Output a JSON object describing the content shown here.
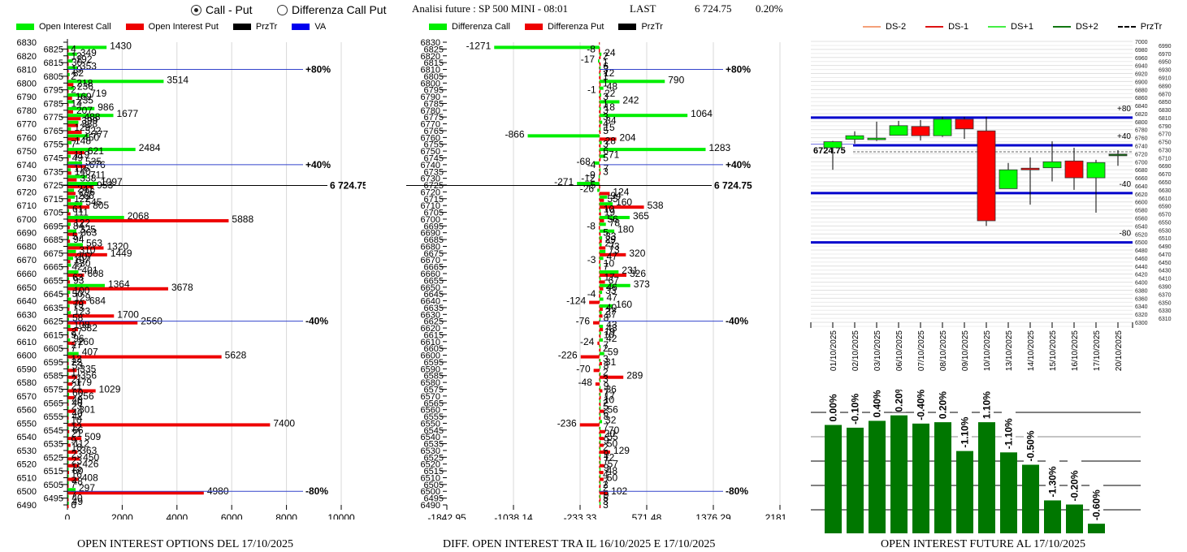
{
  "controls": {
    "radio_options": [
      {
        "label": "Call - Put",
        "selected": true
      },
      {
        "label": "Differenza Call Put",
        "selected": false
      }
    ]
  },
  "header": {
    "title": "Analisi future : SP 500 MINI - 08:01",
    "last_label": "LAST",
    "last_value": "6 724.75",
    "change": "0.20%"
  },
  "colors": {
    "call": "#00ee00",
    "put": "#ee0000",
    "prztr": "#000000",
    "va": "#0000ff",
    "candle_up": "#00ff00",
    "candle_down": "#ff0000",
    "ds_minus2": "#f4a07a",
    "ds_minus1": "#dd1111",
    "ds_plus1": "#44ee44",
    "ds_plus2": "#117711",
    "oi_bar": "#007700"
  },
  "chart_data": [
    {
      "id": "oi_options",
      "type": "bar",
      "orientation": "horizontal",
      "title": "OPEN INTEREST OPTIONS DEL 17/10/2025",
      "legend": [
        "Open Interest Call",
        "Open Interest Put",
        "PrzTr",
        "VA"
      ],
      "xlim": [
        0,
        10000
      ],
      "x_ticks": [
        "0",
        "2000",
        "4000",
        "6000",
        "8000",
        "10000"
      ],
      "ylim": [
        6490,
        6830
      ],
      "strikes": [
        6825,
        6820,
        6815,
        6810,
        6805,
        6800,
        6795,
        6790,
        6785,
        6780,
        6775,
        6770,
        6765,
        6760,
        6755,
        6750,
        6745,
        6740,
        6735,
        6730,
        6725,
        6720,
        6715,
        6710,
        6705,
        6700,
        6695,
        6690,
        6685,
        6680,
        6675,
        6670,
        6665,
        6660,
        6655,
        6650,
        6645,
        6640,
        6635,
        6630,
        6625,
        6620,
        6615,
        6610,
        6605,
        6600,
        6595,
        6590,
        6585,
        6580,
        6575,
        6570,
        6565,
        6560,
        6555,
        6550,
        6545,
        6540,
        6535,
        6530,
        6525,
        6520,
        6515,
        6510,
        6505,
        6500,
        6495,
        6490
      ],
      "series": [
        {
          "name": "Open Interest Call",
          "values": [
            1430,
            349,
            192,
            353,
            82,
            3514,
            236,
            719,
            235,
            986,
            1677,
            399,
            129,
            777,
            148,
            2484,
            119,
            535,
            116,
            711,
            1097,
            241,
            266,
            545,
            61,
            2068,
            122,
            325,
            57,
            563,
            310,
            207,
            130,
            401,
            63,
            1364,
            100,
            129,
            79,
            123,
            58,
            108,
            27,
            96,
            27,
            407,
            12,
            53,
            11,
            21,
            21,
            60,
            40,
            23,
            40,
            10,
            12,
            21,
            9,
            18,
            23,
            23,
            15,
            16,
            48,
            297,
            7,
            49
          ]
        },
        {
          "name": "Open Interest Put",
          "values": [
            4,
            13,
            30,
            19,
            2,
            218,
            2,
            169,
            14,
            207,
            488,
            388,
            522,
            450,
            7,
            621,
            49,
            676,
            140,
            338,
            953,
            296,
            122,
            805,
            111,
            5888,
            84,
            363,
            94,
            1320,
            1449,
            107,
            42,
            608,
            93,
            3678,
            50,
            684,
            73,
            1700,
            2560,
            382,
            9,
            260,
            7,
            5628,
            22,
            335,
            356,
            179,
            1029,
            256,
            40,
            301,
            42,
            7400,
            66,
            509,
            112,
            363,
            450,
            426,
            60,
            408,
            7,
            4980,
            40,
            6
          ]
        }
      ],
      "reference_lines": [
        {
          "label": "+80%",
          "strike": 6810,
          "color": "va"
        },
        {
          "label": "+40%",
          "strike": 6740,
          "color": "va"
        },
        {
          "label": "6 724.75",
          "strike": 6724.75,
          "color": "prztr"
        },
        {
          "label": "-40%",
          "strike": 6625,
          "color": "va"
        },
        {
          "label": "-80%",
          "strike": 6500,
          "color": "va"
        }
      ]
    },
    {
      "id": "diff_oi",
      "type": "bar",
      "orientation": "horizontal",
      "title": "DIFF. OPEN INTEREST TRA IL 16/10/2025 E 17/10/2025",
      "legend": [
        "Differenza Call",
        "Differenza Put",
        "PrzTr"
      ],
      "xlim": [
        -1842.95,
        2181.1
      ],
      "x_ticks": [
        "-1842.95",
        "-1038.14",
        "-233.33",
        "571.48",
        "1376.29",
        "2181.1"
      ],
      "ylim": [
        6490,
        6830
      ],
      "strikes": [
        6825,
        6820,
        6815,
        6810,
        6805,
        6800,
        6795,
        6790,
        6785,
        6780,
        6775,
        6770,
        6765,
        6760,
        6755,
        6750,
        6745,
        6740,
        6735,
        6730,
        6725,
        6720,
        6715,
        6710,
        6705,
        6700,
        6695,
        6690,
        6685,
        6680,
        6675,
        6670,
        6665,
        6660,
        6655,
        6650,
        6645,
        6640,
        6635,
        6630,
        6625,
        6620,
        6615,
        6610,
        6605,
        6600,
        6595,
        6590,
        6585,
        6580,
        6575,
        6570,
        6565,
        6560,
        6555,
        6550,
        6545,
        6540,
        6535,
        6530,
        6525,
        6520,
        6515,
        6510,
        6505,
        6500,
        6495,
        6490
      ],
      "series": [
        {
          "name": "Differenza Call",
          "values": [
            -1271,
            24,
            -17,
            6,
            12,
            790,
            48,
            22,
            242,
            18,
            1064,
            34,
            15,
            -866,
            28,
            1283,
            71,
            -68,
            7,
            -9,
            -271,
            -26,
            94,
            160,
            10,
            365,
            78,
            180,
            33,
            27,
            73,
            47,
            10,
            231,
            17,
            373,
            33,
            47,
            160,
            27,
            8,
            43,
            19,
            42,
            7,
            59,
            3,
            8,
            2,
            3,
            9,
            7,
            10,
            5,
            6,
            32,
            7,
            20,
            9,
            2,
            9,
            7,
            9,
            4,
            7,
            2,
            9,
            3
          ]
        },
        {
          "name": "Differenza Put",
          "values": [
            -8,
            2,
            1,
            3,
            1,
            1,
            -1,
            3,
            1,
            3,
            3,
            4,
            5,
            204,
            3,
            6,
            5,
            -4,
            3,
            -12,
            -5,
            124,
            55,
            538,
            19,
            56,
            -8,
            5,
            29,
            73,
            320,
            -3,
            7,
            326,
            67,
            46,
            -4,
            -124,
            40,
            37,
            -76,
            43,
            10,
            -24,
            2,
            -226,
            31,
            -70,
            289,
            -48,
            36,
            17,
            2,
            56,
            8,
            -236,
            70,
            55,
            50,
            129,
            12,
            57,
            48,
            50,
            2,
            102,
            5,
            3
          ]
        }
      ],
      "reference_lines": [
        {
          "label": "+80%",
          "strike": 6810,
          "color": "va"
        },
        {
          "label": "+40%",
          "strike": 6740,
          "color": "va"
        },
        {
          "label": "6 724.75",
          "strike": 6724.75,
          "color": "prztr"
        },
        {
          "label": "-40%",
          "strike": 6625,
          "color": "va"
        },
        {
          "label": "-80%",
          "strike": 6500,
          "color": "va"
        }
      ]
    },
    {
      "id": "future_candles",
      "type": "candlestick",
      "legend": [
        "DS-2",
        "DS-1",
        "DS+1",
        "DS+2",
        "PrzTr"
      ],
      "ylim": [
        6300,
        7000
      ],
      "y_ticks_left": [
        "7000",
        "6980",
        "6960",
        "6940",
        "6920",
        "6900",
        "6880",
        "6860",
        "6840",
        "6820",
        "6800",
        "6780",
        "6760",
        "6740",
        "6720",
        "6700",
        "6680",
        "6660",
        "6640",
        "6620",
        "6600",
        "6580",
        "6560",
        "6540",
        "6520",
        "6500",
        "6480",
        "6460",
        "6440",
        "6420",
        "6400",
        "6380",
        "6360",
        "6340",
        "6320",
        "6300"
      ],
      "y_ticks_right": [
        "6990",
        "6970",
        "6950",
        "6930",
        "6910",
        "6890",
        "6870",
        "6850",
        "6830",
        "6810",
        "6790",
        "6770",
        "6750",
        "6730",
        "6710",
        "6690",
        "6670",
        "6650",
        "6630",
        "6610",
        "6590",
        "6570",
        "6550",
        "6530",
        "6510",
        "6490",
        "6470",
        "6450",
        "6430",
        "6410",
        "6390",
        "6370",
        "6350",
        "6330",
        "6310"
      ],
      "dates": [
        "01/10/2025",
        "02/10/2025",
        "03/10/2025",
        "06/10/2025",
        "07/10/2025",
        "08/10/2025",
        "09/10/2025",
        "10/10/2025",
        "13/10/2025",
        "14/10/2025",
        "15/10/2025",
        "16/10/2025",
        "17/10/2025",
        "20/10/2025"
      ],
      "candles": [
        {
          "open": 6735,
          "high": 6752,
          "low": 6680,
          "close": 6750
        },
        {
          "open": 6756,
          "high": 6776,
          "low": 6745,
          "close": 6765
        },
        {
          "open": 6759,
          "high": 6800,
          "low": 6752,
          "close": 6759
        },
        {
          "open": 6766,
          "high": 6802,
          "low": 6766,
          "close": 6790
        },
        {
          "open": 6788,
          "high": 6804,
          "low": 6753,
          "close": 6765
        },
        {
          "open": 6765,
          "high": 6812,
          "low": 6762,
          "close": 6806
        },
        {
          "open": 6806,
          "high": 6812,
          "low": 6757,
          "close": 6782
        },
        {
          "open": 6777,
          "high": 6812,
          "low": 6540,
          "close": 6553
        },
        {
          "open": 6633,
          "high": 6697,
          "low": 6633,
          "close": 6680
        },
        {
          "open": 6684,
          "high": 6711,
          "low": 6593,
          "close": 6680
        },
        {
          "open": 6685,
          "high": 6751,
          "low": 6651,
          "close": 6700
        },
        {
          "open": 6702,
          "high": 6735,
          "low": 6630,
          "close": 6660
        },
        {
          "open": 6660,
          "high": 6705,
          "low": 6573,
          "close": 6698
        },
        {
          "open": 6715,
          "high": 6729,
          "low": 6690,
          "close": 6719
        }
      ],
      "levels": [
        {
          "label": "+80",
          "value": 6810
        },
        {
          "label": "+40",
          "value": 6741
        },
        {
          "label": "-40",
          "value": 6622
        },
        {
          "label": "-80",
          "value": 6499
        }
      ],
      "przTr": 6724.75,
      "przTr_label": "6724.75"
    },
    {
      "id": "oi_future",
      "type": "bar",
      "title": "OPEN INTEREST FUTURE AL 17/10/2025",
      "categories": [
        "01/10/2025",
        "02/10/2025",
        "03/10/2025",
        "06/10/2025",
        "07/10/2025",
        "08/10/2025",
        "09/10/2025",
        "10/10/2025",
        "13/10/2025",
        "14/10/2025",
        "15/10/2025",
        "16/10/2025",
        "17/10/2025"
      ],
      "values": [
        79,
        77,
        82,
        86,
        80,
        81,
        60,
        81,
        59,
        50,
        24,
        21,
        7
      ],
      "value_unit": "percent of chart height",
      "labels": [
        "0.00%",
        "-0.10%",
        "0.40%",
        "0.20%",
        "-0.40%",
        "0.20%",
        "-1.10%",
        "1.10%",
        "-1.10%",
        "-0.50%",
        "-1.30%",
        "-0.20%",
        "-0.60%"
      ],
      "grid": true
    }
  ]
}
